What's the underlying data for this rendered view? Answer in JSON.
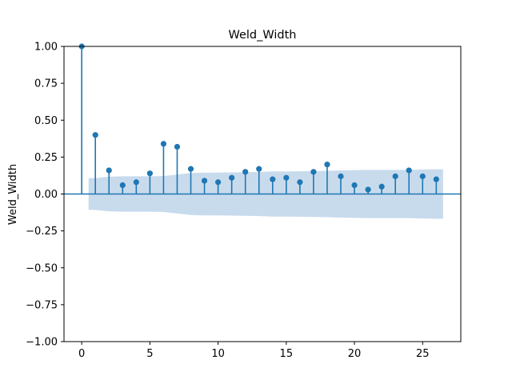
{
  "chart_data": {
    "type": "stem",
    "title": "Weld_Width",
    "xlabel": "",
    "ylabel": "Weld_Width",
    "xlim": [
      -1.3,
      27.8
    ],
    "ylim": [
      -1.0,
      1.0
    ],
    "x_ticks": [
      0,
      5,
      10,
      15,
      20,
      25
    ],
    "y_ticks": [
      -1.0,
      -0.75,
      -0.5,
      -0.25,
      0.0,
      0.25,
      0.5,
      0.75,
      1.0
    ],
    "x_tick_labels": [
      "0",
      "5",
      "10",
      "15",
      "20",
      "25"
    ],
    "y_tick_labels": [
      "−1.00",
      "−0.75",
      "−0.50",
      "−0.25",
      "0.00",
      "0.25",
      "0.50",
      "0.75",
      "1.00"
    ],
    "grid": false,
    "colors": {
      "stem": "#1f77b4",
      "confidence_band": "#c5d9ec",
      "zero_line": "#1f77b4"
    },
    "lags": [
      0,
      1,
      2,
      3,
      4,
      5,
      6,
      7,
      8,
      9,
      10,
      11,
      12,
      13,
      14,
      15,
      16,
      17,
      18,
      19,
      20,
      21,
      22,
      23,
      24,
      25,
      26
    ],
    "values": [
      1.0,
      0.4,
      0.16,
      0.06,
      0.08,
      0.14,
      0.34,
      0.32,
      0.17,
      0.09,
      0.08,
      0.11,
      0.15,
      0.17,
      0.1,
      0.11,
      0.08,
      0.15,
      0.2,
      0.12,
      0.06,
      0.03,
      0.05,
      0.12,
      0.16,
      0.12,
      0.1
    ],
    "confidence_band": {
      "x": [
        0.5,
        1,
        2,
        3,
        4,
        5,
        6,
        7,
        8,
        9,
        10,
        11,
        12,
        13,
        14,
        15,
        16,
        17,
        18,
        19,
        20,
        21,
        22,
        23,
        24,
        25,
        26,
        26.5
      ],
      "upper": [
        0.108,
        0.108,
        0.117,
        0.12,
        0.12,
        0.12,
        0.122,
        0.132,
        0.142,
        0.145,
        0.145,
        0.146,
        0.148,
        0.15,
        0.153,
        0.153,
        0.154,
        0.155,
        0.157,
        0.16,
        0.162,
        0.163,
        0.163,
        0.163,
        0.163,
        0.166,
        0.168,
        0.168
      ],
      "lower": [
        -0.108,
        -0.108,
        -0.117,
        -0.12,
        -0.12,
        -0.12,
        -0.122,
        -0.132,
        -0.142,
        -0.145,
        -0.145,
        -0.146,
        -0.148,
        -0.15,
        -0.153,
        -0.153,
        -0.154,
        -0.155,
        -0.157,
        -0.16,
        -0.162,
        -0.163,
        -0.163,
        -0.163,
        -0.163,
        -0.166,
        -0.168,
        -0.168
      ]
    }
  }
}
